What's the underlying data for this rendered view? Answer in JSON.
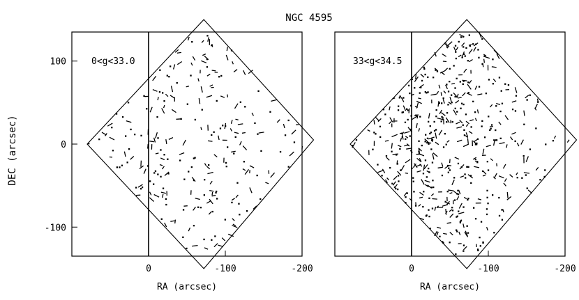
{
  "figure": {
    "title": "NGC 4595",
    "xlabel": "RA (arcsec)",
    "ylabel": "DEC (arcsec)"
  },
  "chart_data": [
    {
      "type": "scatter",
      "label": "0<g<33.0",
      "xlim": [
        100,
        -200
      ],
      "ylim": [
        -135,
        135
      ],
      "xticks": [
        {
          "v": 0,
          "label": "0"
        },
        {
          "v": -100,
          "label": "-100"
        },
        {
          "v": -200,
          "label": "-200"
        }
      ],
      "yticks": [
        {
          "v": 100,
          "label": "100"
        },
        {
          "v": 0,
          "label": "0"
        },
        {
          "v": -100,
          "label": "-100"
        }
      ],
      "field_polygon": [
        [
          -72,
          150
        ],
        [
          -215,
          5
        ],
        [
          -72,
          -150
        ],
        [
          80,
          0
        ]
      ],
      "vertical_line_x": 0,
      "density": "moderate"
    },
    {
      "type": "scatter",
      "label": "33<g<34.5",
      "xlim": [
        100,
        -200
      ],
      "ylim": [
        -135,
        135
      ],
      "xticks": [
        {
          "v": 0,
          "label": "0"
        },
        {
          "v": -100,
          "label": "-100"
        },
        {
          "v": -200,
          "label": "-200"
        }
      ],
      "yticks": [],
      "field_polygon": [
        [
          -72,
          150
        ],
        [
          -215,
          5
        ],
        [
          -72,
          -150
        ],
        [
          80,
          0
        ]
      ],
      "vertical_line_x": 0,
      "density": "high"
    }
  ]
}
